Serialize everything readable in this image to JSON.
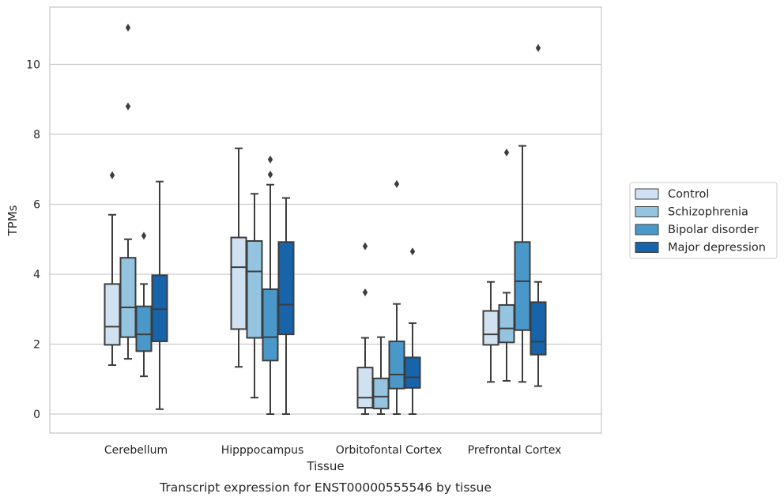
{
  "chart_data": {
    "type": "box",
    "title": "Transcript expression for ENST00000555546 by tissue",
    "xlabel": "Tissue",
    "ylabel": "TPMs",
    "ylim": [
      -0.5,
      11.6
    ],
    "yticks": [
      0,
      2,
      4,
      6,
      8,
      10
    ],
    "grid": "horizontal",
    "legend_position": "right",
    "categories": [
      "Cerebellum",
      "Hipppocampus",
      "Orbitofontal Cortex",
      "Prefrontal Cortex"
    ],
    "series": [
      {
        "name": "Control",
        "color": "#d0e1f2",
        "boxes": [
          {
            "whislo": 1.4,
            "q1": 1.98,
            "med": 2.5,
            "q3": 3.72,
            "whishi": 5.7,
            "fliers": [
              6.83
            ]
          },
          {
            "whislo": 1.35,
            "q1": 2.43,
            "med": 4.2,
            "q3": 5.05,
            "whishi": 7.6,
            "fliers": []
          },
          {
            "whislo": 0.0,
            "q1": 0.18,
            "med": 0.47,
            "q3": 1.33,
            "whishi": 2.18,
            "fliers": [
              3.48,
              4.8
            ]
          },
          {
            "whislo": 0.92,
            "q1": 1.98,
            "med": 2.28,
            "q3": 2.95,
            "whishi": 3.78,
            "fliers": []
          }
        ]
      },
      {
        "name": "Schizophrenia",
        "color": "#94c4df",
        "boxes": [
          {
            "whislo": 1.58,
            "q1": 2.2,
            "med": 3.05,
            "q3": 4.47,
            "whishi": 5.0,
            "fliers": [
              8.8,
              11.05
            ]
          },
          {
            "whislo": 0.47,
            "q1": 2.18,
            "med": 4.08,
            "q3": 4.95,
            "whishi": 6.3,
            "fliers": []
          },
          {
            "whislo": 0.0,
            "q1": 0.16,
            "med": 0.5,
            "q3": 1.02,
            "whishi": 2.2,
            "fliers": []
          },
          {
            "whislo": 0.95,
            "q1": 2.05,
            "med": 2.45,
            "q3": 3.12,
            "whishi": 3.47,
            "fliers": [
              7.48
            ]
          }
        ]
      },
      {
        "name": "Bipolar disorder",
        "color": "#4a98c9",
        "boxes": [
          {
            "whislo": 1.08,
            "q1": 1.8,
            "med": 2.28,
            "q3": 3.08,
            "whishi": 3.72,
            "fliers": [
              5.1
            ]
          },
          {
            "whislo": 0.0,
            "q1": 1.53,
            "med": 2.2,
            "q3": 3.57,
            "whishi": 6.56,
            "fliers": [
              6.85,
              7.28
            ]
          },
          {
            "whislo": 0.0,
            "q1": 0.73,
            "med": 1.13,
            "q3": 2.08,
            "whishi": 3.15,
            "fliers": [
              6.58
            ]
          },
          {
            "whislo": 0.92,
            "q1": 2.4,
            "med": 3.8,
            "q3": 4.92,
            "whishi": 7.67,
            "fliers": []
          }
        ]
      },
      {
        "name": "Major depression",
        "color": "#1764ab",
        "boxes": [
          {
            "whislo": 0.14,
            "q1": 2.08,
            "med": 3.0,
            "q3": 3.97,
            "whishi": 6.65,
            "fliers": []
          },
          {
            "whislo": 0.0,
            "q1": 2.28,
            "med": 3.13,
            "q3": 4.92,
            "whishi": 6.18,
            "fliers": []
          },
          {
            "whislo": 0.0,
            "q1": 0.75,
            "med": 1.05,
            "q3": 1.62,
            "whishi": 2.6,
            "fliers": [
              4.65
            ]
          },
          {
            "whislo": 0.8,
            "q1": 1.7,
            "med": 2.07,
            "q3": 3.2,
            "whishi": 3.78,
            "fliers": [
              10.47
            ]
          }
        ]
      }
    ]
  }
}
